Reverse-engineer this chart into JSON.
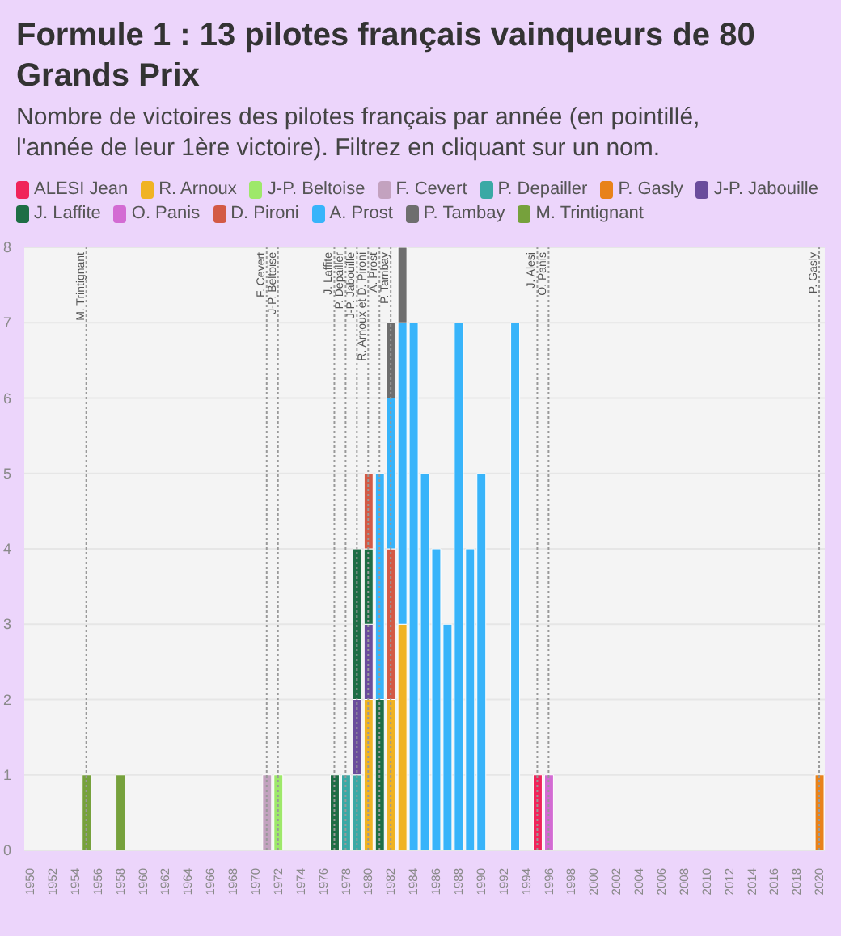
{
  "chart_data": {
    "type": "bar",
    "title": "Formule 1 : 13 pilotes français vainqueurs de 80 Grands Prix",
    "subtitle": "Nombre de victoires des pilotes français par année (en pointillé, l'année de leur 1ère victoire). Filtrez en cliquant sur un nom.",
    "x": [
      1955,
      1958,
      1971,
      1972,
      1977,
      1978,
      1979,
      1980,
      1981,
      1982,
      1983,
      1984,
      1985,
      1986,
      1987,
      1988,
      1989,
      1990,
      1993,
      1995,
      1996,
      2020
    ],
    "series": [
      {
        "name": "ALESI Jean",
        "color": "#f0245a",
        "values": [
          null,
          null,
          null,
          null,
          null,
          null,
          null,
          null,
          null,
          null,
          null,
          null,
          null,
          null,
          null,
          null,
          null,
          null,
          null,
          1,
          null,
          null
        ]
      },
      {
        "name": "R. Arnoux",
        "color": "#f0b323",
        "values": [
          null,
          null,
          null,
          null,
          null,
          null,
          null,
          2,
          null,
          2,
          3,
          null,
          null,
          null,
          null,
          null,
          null,
          null,
          null,
          null,
          null,
          null
        ]
      },
      {
        "name": "J-P. Beltoise",
        "color": "#9ee86a",
        "values": [
          null,
          null,
          null,
          1,
          null,
          null,
          null,
          null,
          null,
          null,
          null,
          null,
          null,
          null,
          null,
          null,
          null,
          null,
          null,
          null,
          null,
          null
        ]
      },
      {
        "name": "F. Cevert",
        "color": "#c3a2bf",
        "values": [
          null,
          null,
          1,
          null,
          null,
          null,
          null,
          null,
          null,
          null,
          null,
          null,
          null,
          null,
          null,
          null,
          null,
          null,
          null,
          null,
          null,
          null
        ]
      },
      {
        "name": "P. Depailler",
        "color": "#3aa9a5",
        "values": [
          null,
          null,
          null,
          null,
          null,
          1,
          1,
          null,
          null,
          null,
          null,
          null,
          null,
          null,
          null,
          null,
          null,
          null,
          null,
          null,
          null,
          null
        ]
      },
      {
        "name": "P. Gasly",
        "color": "#e8821a",
        "values": [
          null,
          null,
          null,
          null,
          null,
          null,
          null,
          null,
          null,
          null,
          null,
          null,
          null,
          null,
          null,
          null,
          null,
          null,
          null,
          null,
          null,
          1
        ]
      },
      {
        "name": "J-P. Jabouille",
        "color": "#6a4c9c",
        "values": [
          null,
          null,
          null,
          null,
          null,
          null,
          1,
          1,
          null,
          null,
          null,
          null,
          null,
          null,
          null,
          null,
          null,
          null,
          null,
          null,
          null,
          null
        ]
      },
      {
        "name": "J. Laffite",
        "color": "#1e6e45",
        "values": [
          null,
          null,
          null,
          null,
          1,
          null,
          2,
          1,
          2,
          null,
          null,
          null,
          null,
          null,
          null,
          null,
          null,
          null,
          null,
          null,
          null,
          null
        ]
      },
      {
        "name": "O. Panis",
        "color": "#d36bd3",
        "values": [
          null,
          null,
          null,
          null,
          null,
          null,
          null,
          null,
          null,
          null,
          null,
          null,
          null,
          null,
          null,
          null,
          null,
          null,
          null,
          null,
          1,
          null
        ]
      },
      {
        "name": "D. Pironi",
        "color": "#d35a45",
        "values": [
          null,
          null,
          null,
          null,
          null,
          null,
          null,
          1,
          null,
          2,
          null,
          null,
          null,
          null,
          null,
          null,
          null,
          null,
          null,
          null,
          null,
          null
        ]
      },
      {
        "name": "A. Prost",
        "color": "#38b4fa",
        "values": [
          null,
          null,
          null,
          null,
          null,
          null,
          null,
          null,
          3,
          2,
          4,
          7,
          5,
          4,
          3,
          7,
          4,
          5,
          7,
          null,
          null,
          null
        ]
      },
      {
        "name": "P. Tambay",
        "color": "#6e6e6e",
        "values": [
          null,
          null,
          null,
          null,
          null,
          null,
          null,
          null,
          null,
          1,
          1,
          null,
          null,
          null,
          null,
          null,
          null,
          null,
          null,
          null,
          null,
          null
        ]
      },
      {
        "name": "M. Trintignant",
        "color": "#76a13c",
        "values": [
          1,
          1,
          null,
          null,
          null,
          null,
          null,
          null,
          null,
          null,
          null,
          null,
          null,
          null,
          null,
          null,
          null,
          null,
          null,
          null,
          null,
          null
        ]
      }
    ],
    "stacked": true,
    "xlim": [
      1949.5,
      2020.5
    ],
    "xticks": [
      1950,
      1952,
      1954,
      1956,
      1958,
      1960,
      1962,
      1964,
      1966,
      1968,
      1970,
      1972,
      1974,
      1976,
      1978,
      1980,
      1982,
      1984,
      1986,
      1988,
      1990,
      1992,
      1994,
      1996,
      1998,
      2000,
      2002,
      2004,
      2006,
      2008,
      2010,
      2012,
      2014,
      2016,
      2018,
      2020
    ],
    "ylim": [
      0,
      8
    ],
    "yticks": [
      0,
      1,
      2,
      3,
      4,
      5,
      6,
      7,
      8
    ],
    "grid": "y",
    "legend": "top",
    "ref_lines": [
      {
        "axis": "x",
        "value": 1955,
        "label": "M. Trintignant",
        "color": "#999999",
        "line_style": "dotted"
      },
      {
        "axis": "x",
        "value": 1971,
        "label": "F. Cevert",
        "color": "#999999",
        "line_style": "dotted"
      },
      {
        "axis": "x",
        "value": 1972,
        "label": "J-P. Beltoise",
        "color": "#999999",
        "line_style": "dotted"
      },
      {
        "axis": "x",
        "value": 1977,
        "label": "J. Laffite",
        "color": "#999999",
        "line_style": "dotted"
      },
      {
        "axis": "x",
        "value": 1978,
        "label": "P. Depailler",
        "color": "#999999",
        "line_style": "dotted"
      },
      {
        "axis": "x",
        "value": 1979,
        "label": "J-P. Jabouille",
        "color": "#999999",
        "line_style": "dotted"
      },
      {
        "axis": "x",
        "value": 1980,
        "label": "R. Arnoux et D. Pironi",
        "color": "#999999",
        "line_style": "dotted"
      },
      {
        "axis": "x",
        "value": 1981,
        "label": "A. Prost",
        "color": "#999999",
        "line_style": "dotted"
      },
      {
        "axis": "x",
        "value": 1982,
        "label": "P. Tambay",
        "color": "#999999",
        "line_style": "dotted"
      },
      {
        "axis": "x",
        "value": 1995,
        "label": "J. Alesi",
        "color": "#999999",
        "line_style": "dotted"
      },
      {
        "axis": "x",
        "value": 1996,
        "label": "O. Panis",
        "color": "#999999",
        "line_style": "dotted"
      },
      {
        "axis": "x",
        "value": 2020,
        "label": "P. Gasly",
        "color": "#999999",
        "line_style": "dotted"
      }
    ]
  }
}
